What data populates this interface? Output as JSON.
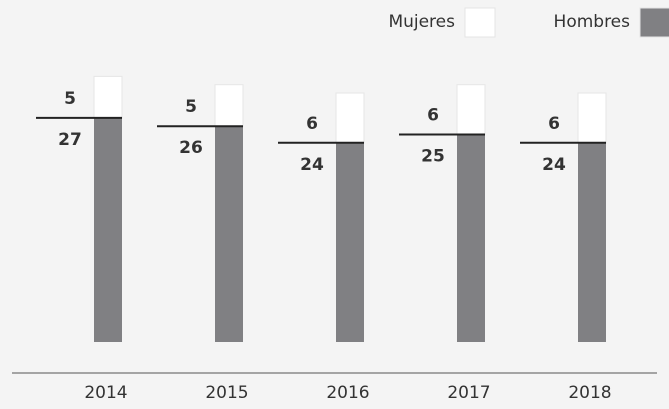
{
  "chart_data": {
    "type": "stacked-bar",
    "categories": [
      "2014",
      "2015",
      "2016",
      "2017",
      "2018"
    ],
    "series": [
      {
        "name": "Hombres",
        "color": "#808083",
        "values": [
          27,
          26,
          24,
          25,
          24
        ]
      },
      {
        "name": "Mujeres",
        "color": "#ffffff",
        "values": [
          5,
          5,
          6,
          6,
          6
        ]
      }
    ],
    "legend": "top-right"
  }
}
